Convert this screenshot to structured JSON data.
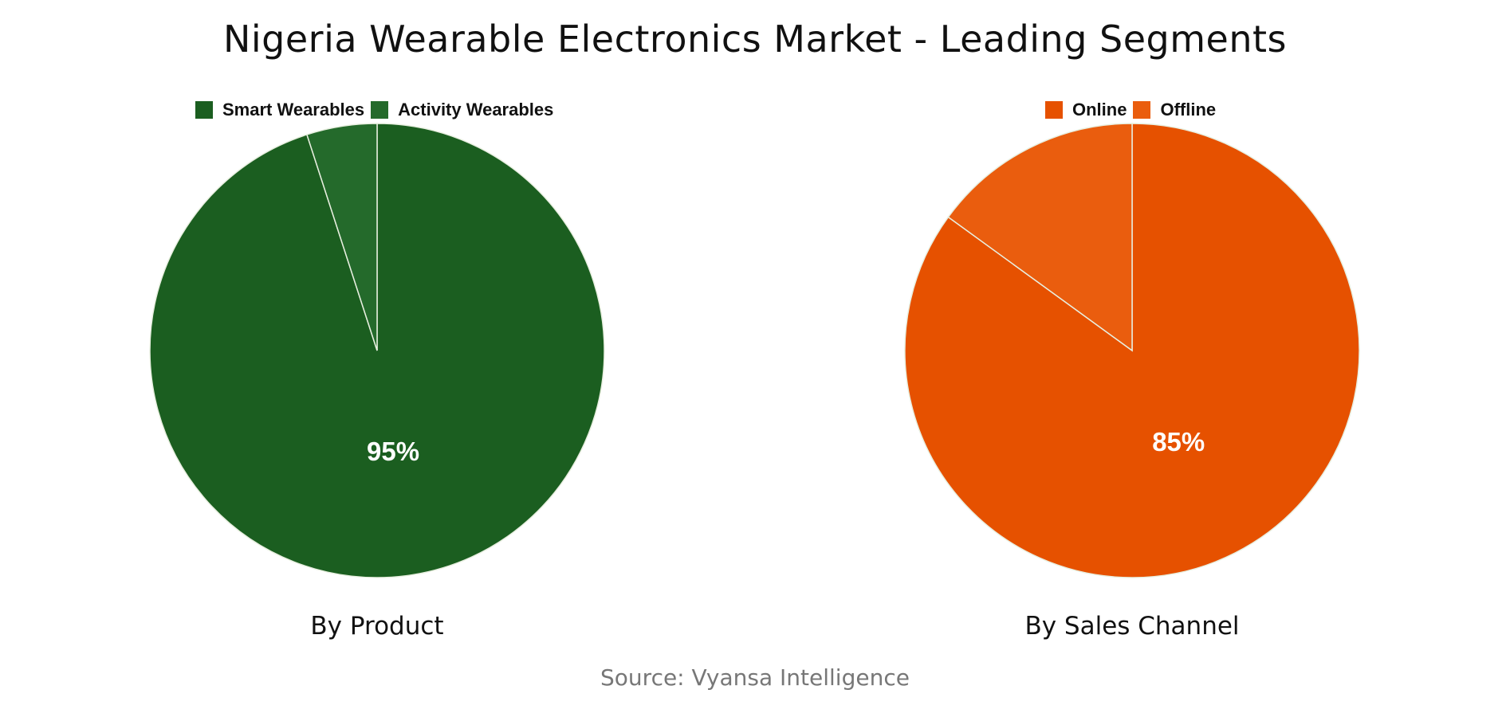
{
  "title": "Nigeria Wearable Electronics Market - Leading Segments",
  "source": "Source: Vyansa Intelligence",
  "chart_data": [
    {
      "type": "pie",
      "subtitle": "By Product",
      "start_angle": "top",
      "direction": "clockwise",
      "legend_position": "top",
      "slices": [
        {
          "name": "Smart Wearables",
          "value": 95,
          "label": "95%",
          "color": "#1b5e20"
        },
        {
          "name": "Activity Wearables",
          "value": 5,
          "label": "",
          "color": "#246a2b"
        }
      ]
    },
    {
      "type": "pie",
      "subtitle": "By Sales Channel",
      "start_angle": "top",
      "direction": "clockwise",
      "legend_position": "top",
      "slices": [
        {
          "name": "Online",
          "value": 85,
          "label": "85%",
          "color": "#e65100"
        },
        {
          "name": "Offline",
          "value": 15,
          "label": "",
          "color": "#ea5d0e"
        }
      ]
    }
  ]
}
